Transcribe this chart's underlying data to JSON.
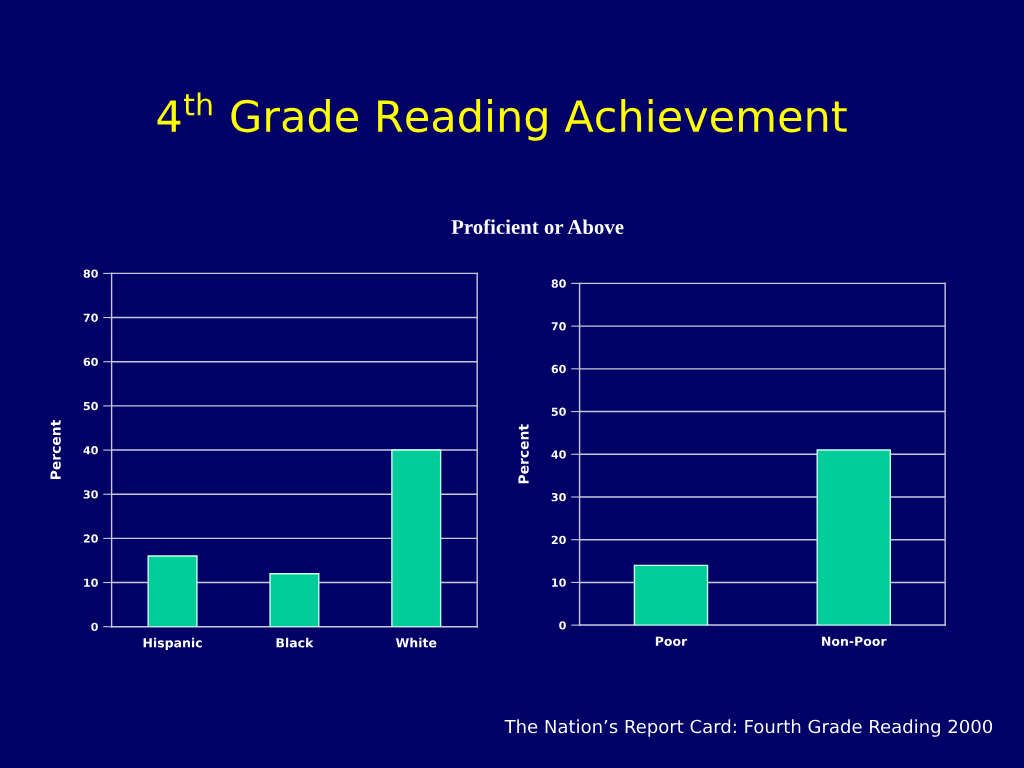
{
  "chart_data": [
    {
      "type": "bar",
      "title": "4$^{th}$ Grade Reading Achievement",
      "subtitle": "Proficient or Above",
      "ylabel": "Percent",
      "categories": [
        "Hispanic",
        "Black",
        "White"
      ],
      "values": [
        16,
        12,
        40
      ],
      "color": "#00cc99",
      "ylim": [
        0,
        80
      ],
      "yticks": [
        0,
        10,
        20,
        30,
        40,
        50,
        60,
        70,
        80
      ],
      "grid": "y"
    },
    {
      "type": "bar",
      "ylabel": "Percent",
      "categories": [
        "Poor",
        "Non-Poor"
      ],
      "values": [
        14,
        41
      ],
      "color": "#00cc99",
      "ylim": [
        0,
        80
      ],
      "yticks": [
        0,
        10,
        20,
        30,
        40,
        50,
        60,
        70,
        80
      ],
      "grid": "y",
      "annotations": [
        "The Nation’s Report Card: Fourth Grade Reading 2000"
      ]
    }
  ]
}
